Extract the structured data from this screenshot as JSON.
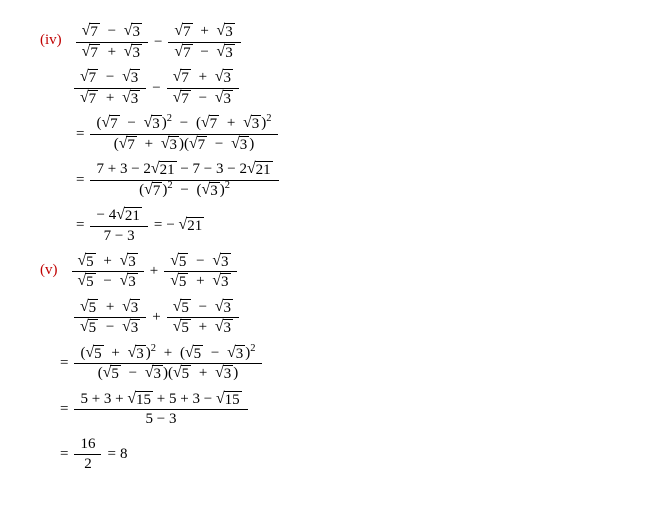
{
  "problems": [
    {
      "label": "(iv)",
      "a": "7",
      "b": "3",
      "prod": "21",
      "coef_mid": "2",
      "coef_final": "4",
      "sign": "-",
      "sum_a": "7",
      "sum_b": "3",
      "denom_diff_l": "7",
      "denom_diff_r": "3",
      "result_rad": "21",
      "result_prefix": "− "
    },
    {
      "label": "(v)",
      "a": "5",
      "b": "3",
      "prod": "15",
      "sum": "5 + 3",
      "num_expanded": "5 + 3 + ",
      "num_expanded2": " + 5 + 3 − ",
      "denom_simple": "5 − 3",
      "final_num": "16",
      "final_den": "2",
      "final_val": "8"
    }
  ],
  "colors": {
    "label": "#c00000",
    "text": "#000000",
    "bg": "#ffffff"
  }
}
